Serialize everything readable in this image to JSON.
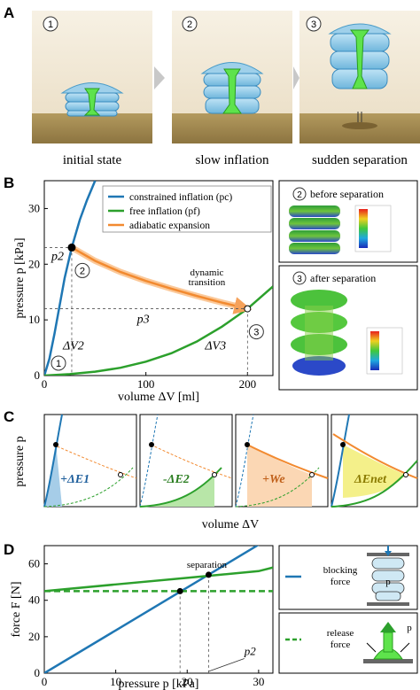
{
  "panels": {
    "A": {
      "letter": "A",
      "stages": [
        {
          "num": "1",
          "label": "initial state"
        },
        {
          "num": "2",
          "label": "slow inflation"
        },
        {
          "num": "3",
          "label": "sudden separation"
        }
      ]
    },
    "B": {
      "letter": "B",
      "ylabel": "pressure p [kPa]",
      "xlabel": "volume ΔV [ml]",
      "legend": [
        "constrained inflation (pc)",
        "free inflation (pf)",
        "adiabatic expansion"
      ],
      "annotations": {
        "p2": "p2",
        "p3": "p3",
        "dV2": "ΔV2",
        "dV3": "ΔV3",
        "transition": [
          "dynamic",
          "transition"
        ],
        "circ1": "1",
        "circ2": "2",
        "circ3": "3"
      },
      "sim_top": {
        "num": "2",
        "label": "before separation"
      },
      "sim_bottom": {
        "num": "3",
        "label": "after separation"
      }
    },
    "C": {
      "letter": "C",
      "ylabel": "pressure p",
      "xlabel": "volume ΔV",
      "box_labels": [
        "+ΔE1",
        "-ΔE2",
        "+We",
        "ΔEnet"
      ]
    },
    "D": {
      "letter": "D",
      "ylabel": "force F [N]",
      "xlabel": "pressure p [kPa]",
      "separation_label": "separation",
      "p2_label": "p2",
      "legend": [
        {
          "line1": "blocking",
          "line2": "force"
        },
        {
          "line1": "release",
          "line2": "force"
        }
      ],
      "inset_p": "p"
    }
  },
  "colors": {
    "blue": "#1f77b4",
    "green": "#2ca02c",
    "orange": "#f28a30",
    "light_green_fill": "#b8e6a8",
    "light_orange_fill": "#fbd7b4",
    "yellow_fill": "#f4f08a",
    "light_blue_fill": "#a6cde8"
  },
  "chart_data": [
    {
      "id": "B",
      "type": "line",
      "xlabel": "volume ΔV [ml]",
      "ylabel": "pressure p [kPa]",
      "xlim": [
        0,
        225
      ],
      "ylim": [
        0,
        35
      ],
      "xticks": [
        0,
        100,
        200
      ],
      "yticks": [
        0,
        10,
        20,
        30
      ],
      "legend_position": "top-right",
      "series": [
        {
          "name": "constrained inflation (pc)",
          "color": "#1f77b4",
          "x": [
            0,
            5,
            10,
            15,
            20,
            27,
            35,
            42,
            50
          ],
          "y": [
            0,
            3,
            7.5,
            12.5,
            17.5,
            23,
            28,
            31.5,
            35
          ]
        },
        {
          "name": "free inflation (pf)",
          "color": "#2ca02c",
          "x": [
            0,
            25,
            50,
            75,
            100,
            125,
            150,
            175,
            200,
            225
          ],
          "y": [
            0,
            0.25,
            0.7,
            1.4,
            2.5,
            4,
            6.1,
            8.8,
            12,
            16
          ]
        },
        {
          "name": "adiabatic expansion",
          "color": "#f28a30",
          "x": [
            27,
            50,
            75,
            100,
            125,
            150,
            175,
            200
          ],
          "y": [
            23,
            20.6,
            18.6,
            17,
            15.6,
            14.3,
            13.1,
            12
          ]
        }
      ],
      "points": [
        {
          "label": "2",
          "x": 27,
          "y": 23
        },
        {
          "label": "3",
          "x": 200,
          "y": 12
        },
        {
          "label": "1",
          "x": 0,
          "y": 0
        }
      ]
    },
    {
      "id": "D",
      "type": "line",
      "xlabel": "pressure p [kPa]",
      "ylabel": "force F [N]",
      "xlim": [
        0,
        32
      ],
      "ylim": [
        0,
        70
      ],
      "xticks": [
        0,
        10,
        20,
        30
      ],
      "yticks": [
        0,
        20,
        40,
        60
      ],
      "legend_position": "right",
      "series": [
        {
          "name": "blocking force",
          "color": "#1f77b4",
          "x": [
            0,
            10,
            20,
            30,
            32
          ],
          "y": [
            0,
            23.5,
            47,
            70.5,
            75
          ]
        },
        {
          "name": "release force",
          "color": "#2ca02c",
          "x": [
            0,
            10,
            20,
            30,
            32
          ],
          "y": [
            45,
            48.7,
            52.3,
            56,
            58
          ]
        },
        {
          "name": "release force (constant)",
          "color": "#2ca02c",
          "x": [
            0,
            32
          ],
          "y": [
            45,
            45
          ]
        }
      ],
      "points": [
        {
          "label": "separation",
          "x": 23,
          "y": 54
        },
        {
          "label": "",
          "x": 19,
          "y": 45
        }
      ]
    }
  ]
}
